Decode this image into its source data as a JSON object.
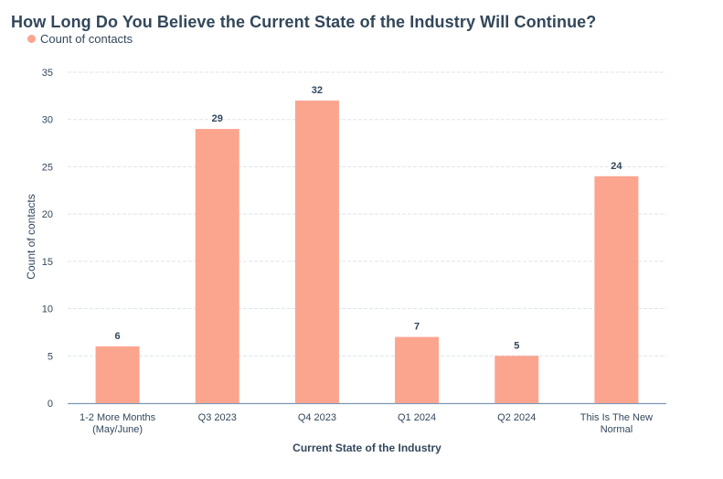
{
  "chart_data": {
    "type": "bar",
    "title": "How Long Do You Believe the Current State of the Industry Will Continue?",
    "legend": {
      "position": "top-left",
      "entries": [
        {
          "name": "Count of contacts",
          "color": "#fba58f"
        }
      ]
    },
    "categories": [
      [
        "1-2 More Months",
        "(May/June)"
      ],
      [
        "Q3 2023"
      ],
      [
        "Q4 2023"
      ],
      [
        "Q1 2024"
      ],
      [
        "Q2 2024"
      ],
      [
        "This Is The New",
        "Normal"
      ]
    ],
    "series": [
      {
        "name": "Count of contacts",
        "values": [
          6,
          29,
          32,
          7,
          5,
          24
        ],
        "color": "#fba58f"
      }
    ],
    "xlabel": "Current State of the Industry",
    "ylabel": "Count of contacts",
    "ylim": [
      0,
      35
    ],
    "yticks": [
      0,
      5,
      10,
      15,
      20,
      25,
      30,
      35
    ],
    "grid": true,
    "data_labels": true
  }
}
